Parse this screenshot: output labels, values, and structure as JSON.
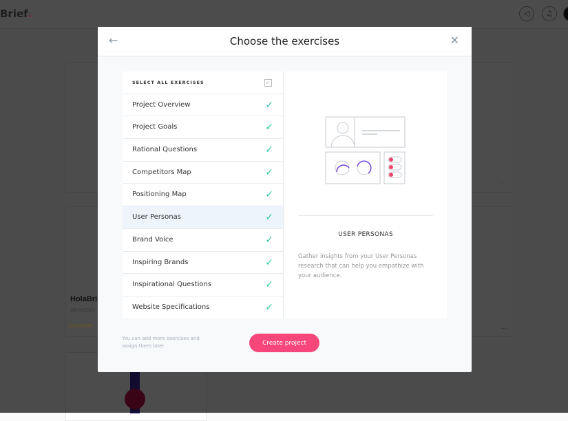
{
  "app": {
    "logo": "Brief",
    "logo_dot": "."
  },
  "background": {
    "card_title": "HolaBri",
    "card_subtitle": "BRANDIN",
    "card_progress": "2/8 COMPL",
    "card_more": "...",
    "card_more2": "..."
  },
  "modal": {
    "title": "Choose the exercises",
    "select_all": "SELECT ALL EXERCISES",
    "exercises": [
      {
        "label": "Project Overview",
        "checked": true
      },
      {
        "label": "Project Goals",
        "checked": true
      },
      {
        "label": "Rational Questions",
        "checked": true
      },
      {
        "label": "Competitors Map",
        "checked": true
      },
      {
        "label": "Positioning Map",
        "checked": true
      },
      {
        "label": "User Personas",
        "checked": true,
        "selected": true
      },
      {
        "label": "Brand Voice",
        "checked": true
      },
      {
        "label": "Inspiring Brands",
        "checked": true
      },
      {
        "label": "Inspirational Questions",
        "checked": true
      },
      {
        "label": "Website Specifications",
        "checked": true
      }
    ],
    "detail": {
      "title": "USER PERSONAS",
      "description": "Gather insights from your User Personas research that can help you empathize with your audience."
    },
    "hint": "You can add more exercises and assign them later.",
    "create_label": "Create project"
  },
  "colors": {
    "accent": "#f7467a",
    "check": "#2cc6a6",
    "ring": "#7b4ce0"
  }
}
